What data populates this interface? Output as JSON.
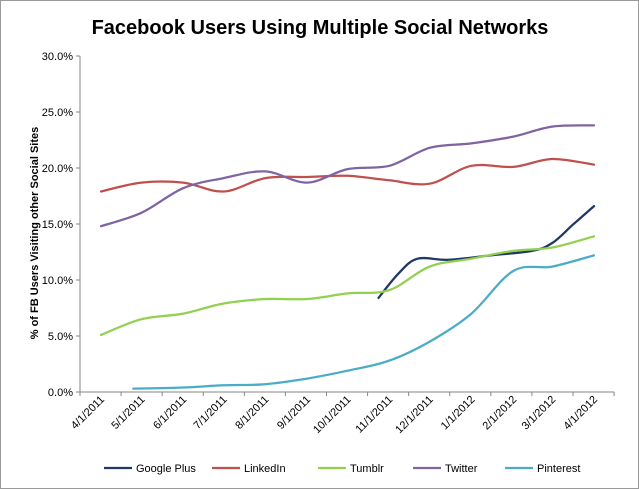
{
  "chart_data": {
    "type": "line",
    "title": "Facebook Users Using Multiple Social Networks",
    "xlabel": "",
    "ylabel": "% of FB Users Visiting other Social Sites",
    "x": [
      "4/1/2011",
      "5/1/2011",
      "6/1/2011",
      "7/1/2011",
      "8/1/2011",
      "9/1/2011",
      "10/1/2011",
      "11/1/2011",
      "12/1/2011",
      "1/1/2012",
      "2/1/2012",
      "3/1/2012",
      "4/1/2012"
    ],
    "yticks": [
      "0.0%",
      "5.0%",
      "10.0%",
      "15.0%",
      "20.0%",
      "25.0%",
      "30.0%"
    ],
    "ylim": [
      0,
      30
    ],
    "grid": false,
    "legend_position": "bottom",
    "series": [
      {
        "name": "Google Plus",
        "color": "#1f3864",
        "points": [
          {
            "x": "10/24/2011",
            "y": 8.4
          },
          {
            "x": "11/8/2011",
            "y": 10.6
          },
          {
            "x": "11/22/2011",
            "y": 11.9
          },
          {
            "x": "12/15/2011",
            "y": 11.8
          },
          {
            "x": "1/15/2012",
            "y": 12.2
          },
          {
            "x": "2/15/2012",
            "y": 12.6
          },
          {
            "x": "3/1/2012",
            "y": 13.3
          },
          {
            "x": "3/16/2012",
            "y": 14.9
          },
          {
            "x": "4/1/2012",
            "y": 16.6
          }
        ]
      },
      {
        "name": "LinkedIn",
        "color": "#c0504d",
        "points": [
          {
            "x": "4/1/2011",
            "y": 17.9
          },
          {
            "x": "5/1/2011",
            "y": 18.7
          },
          {
            "x": "6/1/2011",
            "y": 18.7
          },
          {
            "x": "7/1/2011",
            "y": 17.9
          },
          {
            "x": "8/1/2011",
            "y": 19.1
          },
          {
            "x": "9/1/2011",
            "y": 19.2
          },
          {
            "x": "10/1/2011",
            "y": 19.3
          },
          {
            "x": "11/1/2011",
            "y": 18.9
          },
          {
            "x": "12/1/2011",
            "y": 18.6
          },
          {
            "x": "1/1/2012",
            "y": 20.2
          },
          {
            "x": "2/1/2012",
            "y": 20.1
          },
          {
            "x": "3/1/2012",
            "y": 20.8
          },
          {
            "x": "4/1/2012",
            "y": 20.3
          }
        ]
      },
      {
        "name": "Tumblr",
        "color": "#92d050",
        "points": [
          {
            "x": "4/1/2011",
            "y": 5.1
          },
          {
            "x": "5/1/2011",
            "y": 6.5
          },
          {
            "x": "6/1/2011",
            "y": 7.0
          },
          {
            "x": "7/1/2011",
            "y": 7.9
          },
          {
            "x": "8/1/2011",
            "y": 8.3
          },
          {
            "x": "9/1/2011",
            "y": 8.3
          },
          {
            "x": "10/1/2011",
            "y": 8.8
          },
          {
            "x": "11/1/2011",
            "y": 9.1
          },
          {
            "x": "12/1/2011",
            "y": 11.2
          },
          {
            "x": "1/1/2012",
            "y": 11.9
          },
          {
            "x": "2/1/2012",
            "y": 12.6
          },
          {
            "x": "3/1/2012",
            "y": 12.9
          },
          {
            "x": "4/1/2012",
            "y": 13.9
          }
        ]
      },
      {
        "name": "Twitter",
        "color": "#8064a2",
        "points": [
          {
            "x": "4/1/2011",
            "y": 14.8
          },
          {
            "x": "5/1/2011",
            "y": 16.0
          },
          {
            "x": "6/1/2011",
            "y": 18.2
          },
          {
            "x": "7/1/2011",
            "y": 19.1
          },
          {
            "x": "8/1/2011",
            "y": 19.7
          },
          {
            "x": "9/1/2011",
            "y": 18.7
          },
          {
            "x": "10/1/2011",
            "y": 19.9
          },
          {
            "x": "11/1/2011",
            "y": 20.2
          },
          {
            "x": "12/1/2011",
            "y": 21.8
          },
          {
            "x": "1/1/2012",
            "y": 22.2
          },
          {
            "x": "2/1/2012",
            "y": 22.8
          },
          {
            "x": "3/1/2012",
            "y": 23.7
          },
          {
            "x": "4/1/2012",
            "y": 23.8
          }
        ]
      },
      {
        "name": "Pinterest",
        "color": "#4bacc6",
        "points": [
          {
            "x": "4/25/2011",
            "y": 0.3
          },
          {
            "x": "6/1/2011",
            "y": 0.4
          },
          {
            "x": "7/1/2011",
            "y": 0.6
          },
          {
            "x": "8/1/2011",
            "y": 0.7
          },
          {
            "x": "9/1/2011",
            "y": 1.2
          },
          {
            "x": "10/1/2011",
            "y": 1.9
          },
          {
            "x": "11/1/2011",
            "y": 2.8
          },
          {
            "x": "12/1/2011",
            "y": 4.5
          },
          {
            "x": "1/1/2012",
            "y": 7.0
          },
          {
            "x": "2/1/2012",
            "y": 10.8
          },
          {
            "x": "3/1/2012",
            "y": 11.2
          },
          {
            "x": "4/1/2012",
            "y": 12.2
          }
        ]
      }
    ]
  }
}
